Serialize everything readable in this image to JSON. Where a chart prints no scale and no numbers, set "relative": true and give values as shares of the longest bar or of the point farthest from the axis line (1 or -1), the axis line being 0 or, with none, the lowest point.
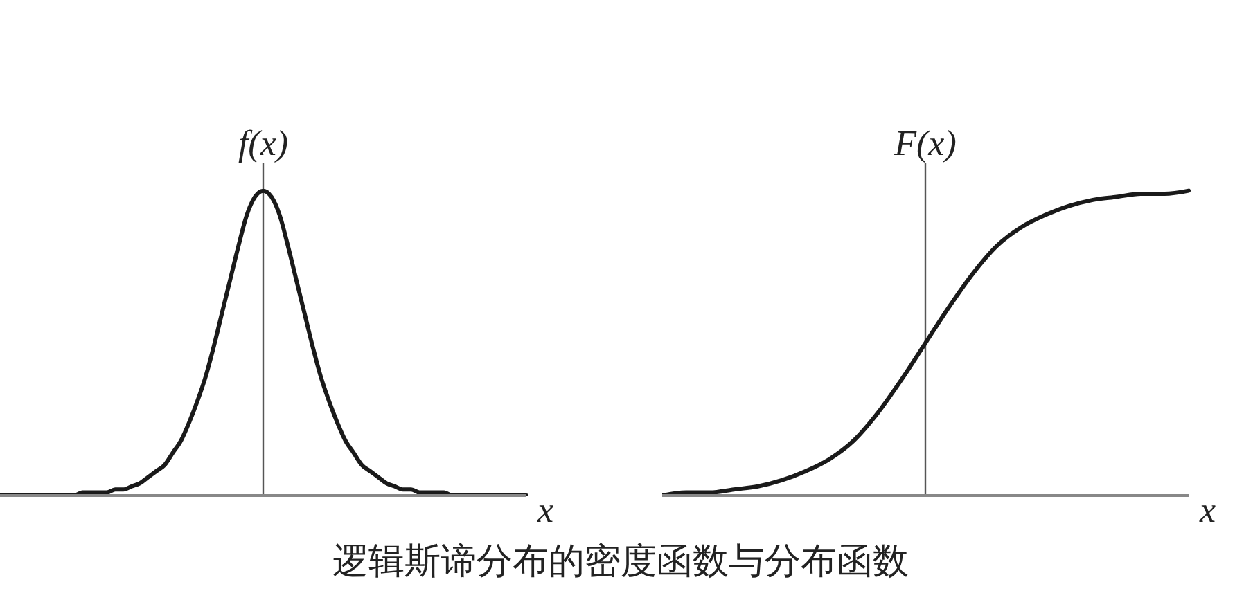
{
  "chart_data": [
    {
      "type": "line",
      "relative": true,
      "ylabel": "f(x)",
      "xlabel": "x",
      "categories": [
        null,
        null,
        null,
        null,
        null,
        null,
        null,
        null,
        null,
        null,
        null,
        null,
        null,
        null,
        null,
        null,
        null,
        null,
        null,
        null,
        null,
        null,
        null,
        null,
        null,
        null,
        null,
        null,
        null,
        null,
        null,
        null,
        null,
        null,
        null,
        null,
        null,
        null,
        null,
        null,
        null,
        null,
        null,
        null,
        null,
        null,
        null,
        null,
        null,
        null,
        null,
        null,
        null,
        null,
        null,
        null,
        null,
        null,
        null,
        null,
        null,
        null,
        null,
        null,
        null
      ],
      "series": [
        {
          "color": "#1a1a1a",
          "values": [
            0,
            0,
            0,
            0,
            0,
            0,
            0,
            0,
            0,
            0,
            0.01,
            0.01,
            0.01,
            0.01,
            0.02,
            0.02,
            0.03,
            0.04,
            0.06,
            0.08,
            0.1,
            0.14,
            0.18,
            0.24,
            0.31,
            0.39,
            0.49,
            0.6,
            0.71,
            0.82,
            0.92,
            0.98,
            1,
            0.98,
            0.92,
            0.82,
            0.71,
            0.6,
            0.49,
            0.39,
            0.31,
            0.24,
            0.18,
            0.14,
            0.1,
            0.08,
            0.06,
            0.04,
            0.03,
            0.02,
            0.02,
            0.01,
            0.01,
            0.01,
            0.01,
            0,
            0,
            0,
            0,
            0,
            0,
            0,
            0,
            0,
            0
          ]
        }
      ],
      "annotations": [
        "逻辑斯谛分布的密度函数与分布函数"
      ]
    },
    {
      "type": "line",
      "relative": true,
      "ylabel": "F(x)",
      "xlabel": "x",
      "categories": [
        null,
        null,
        null,
        null,
        null,
        null,
        null,
        null,
        null,
        null,
        null,
        null,
        null,
        null,
        null,
        null,
        null,
        null,
        null,
        null,
        null,
        null,
        null
      ],
      "series": [
        {
          "color": "#1a1a1a",
          "values": [
            0,
            0.01,
            0.01,
            0.02,
            0.03,
            0.05,
            0.08,
            0.12,
            0.18,
            0.27,
            0.38,
            0.5,
            0.62,
            0.73,
            0.82,
            0.88,
            0.92,
            0.95,
            0.97,
            0.98,
            0.99,
            0.99,
            1
          ]
        }
      ]
    }
  ]
}
